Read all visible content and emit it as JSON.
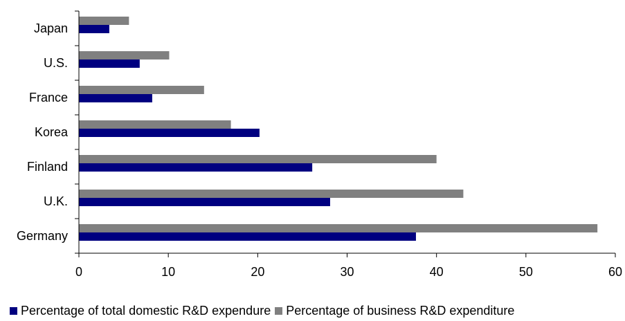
{
  "chart_data": {
    "type": "bar",
    "orientation": "horizontal",
    "categories": [
      "Japan",
      "U.S.",
      "France",
      "Korea",
      "Finland",
      "U.K.",
      "Germany"
    ],
    "series": [
      {
        "name": "Percentage of business R&D expenditure",
        "color": "#808080",
        "values": [
          5.6,
          10.1,
          14.0,
          17.0,
          40.0,
          43.0,
          58.0
        ]
      },
      {
        "name": "Percentage of total domestic R&D expendure",
        "color": "#000080",
        "values": [
          3.4,
          6.8,
          8.2,
          20.2,
          26.1,
          28.1,
          37.7
        ]
      }
    ],
    "xlim": [
      0,
      60
    ],
    "xticks": [
      "0",
      "10",
      "20",
      "30",
      "40",
      "50",
      "60"
    ],
    "title": "",
    "xlabel": "",
    "ylabel": "",
    "grid": false,
    "legend_position": "bottom"
  },
  "legend": {
    "items": [
      {
        "label": "Percentage of total domestic R&D expendure",
        "color": "#000080"
      },
      {
        "label": "Percentage of business R&D expenditure",
        "color": "#808080"
      }
    ]
  }
}
